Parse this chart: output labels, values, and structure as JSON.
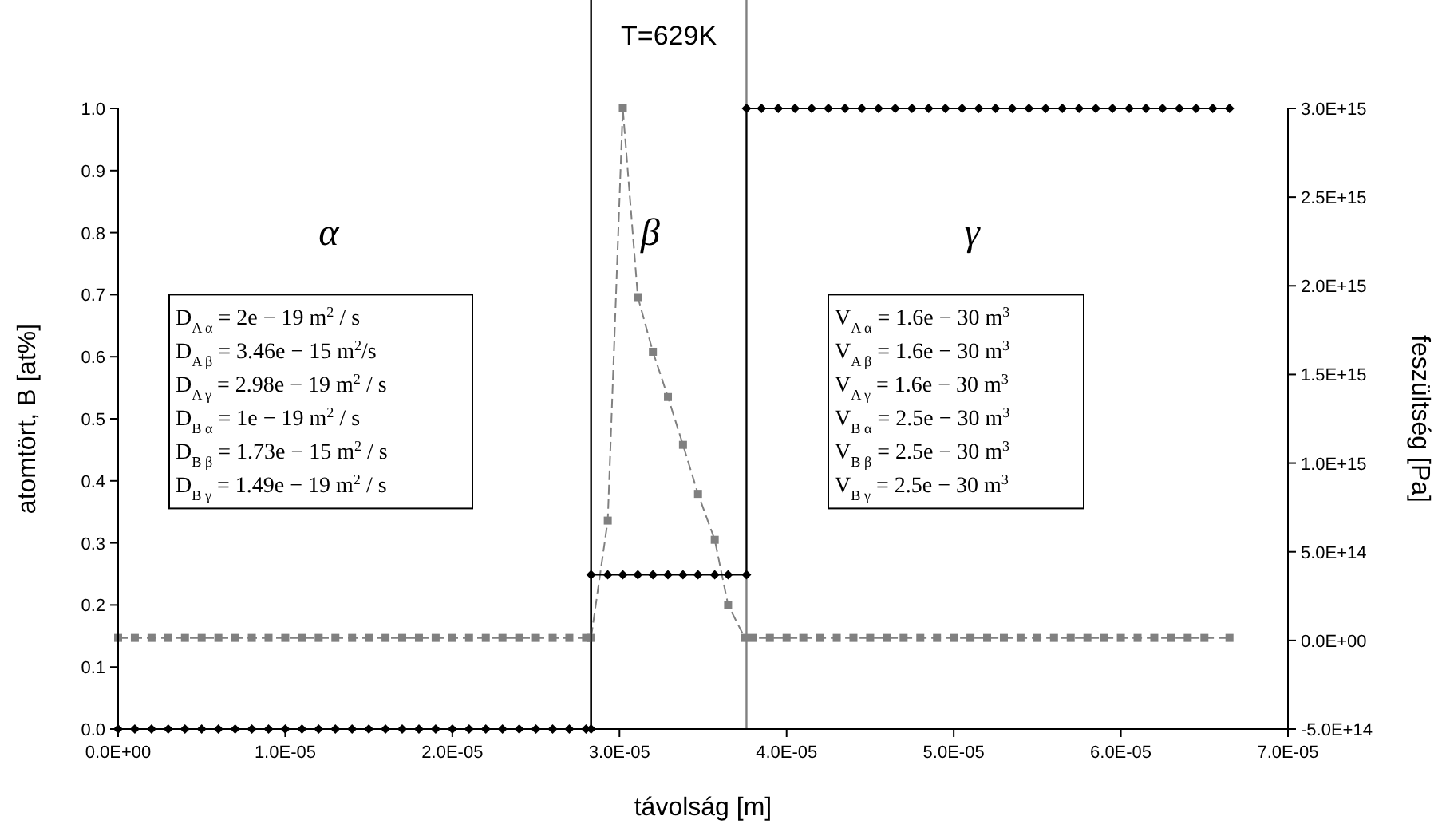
{
  "chart_data": {
    "type": "line",
    "title": "T=629K",
    "xlabel": "távolság [m]",
    "ylabel": "atomtört, B [at%]",
    "y2label": "feszültség [Pa]",
    "xlim": [
      0,
      7e-05
    ],
    "xticks": [
      {
        "value": 0,
        "label": "0.0E+00"
      },
      {
        "value": 1e-05,
        "label": "1.0E-05"
      },
      {
        "value": 2e-05,
        "label": "2.0E-05"
      },
      {
        "value": 3e-05,
        "label": "3.0E-05"
      },
      {
        "value": 4e-05,
        "label": "4.0E-05"
      },
      {
        "value": 5e-05,
        "label": "5.0E-05"
      },
      {
        "value": 6e-05,
        "label": "6.0E-05"
      },
      {
        "value": 7e-05,
        "label": "7.0E-05"
      }
    ],
    "ylim": [
      0,
      1
    ],
    "yticks": [
      {
        "value": 0,
        "label": "0.0"
      },
      0.1,
      0.2,
      0.3,
      0.4,
      0.5,
      0.6,
      0.7,
      0.8,
      0.9,
      {
        "value": 1,
        "label": "1.0"
      }
    ],
    "y2lim": [
      -500000000000000.0,
      3000000000000000.0
    ],
    "y2ticks": [
      {
        "value": -500000000000000.0,
        "label": "-5.0E+14"
      },
      {
        "value": 0,
        "label": "0.0E+00"
      },
      {
        "value": 500000000000000.0,
        "label": "5.0E+14"
      },
      {
        "value": 1000000000000000.0,
        "label": "1.0E+15"
      },
      {
        "value": 1500000000000000.0,
        "label": "1.5E+15"
      },
      {
        "value": 2000000000000000.0,
        "label": "2.0E+15"
      },
      {
        "value": 2500000000000000.0,
        "label": "2.5E+15"
      },
      {
        "value": 3000000000000000.0,
        "label": "3.0E+15"
      }
    ],
    "grid": false,
    "ref_lines": [
      {
        "axis": "x",
        "value": 2.83e-05,
        "color": "#000000"
      },
      {
        "axis": "x",
        "value": 3.76e-05,
        "color": "#808080"
      }
    ],
    "series": [
      {
        "color": "#808080",
        "marker": "square",
        "line_style": "dashed",
        "x": [
          0,
          1e-06,
          2e-06,
          3e-06,
          4e-06,
          5e-06,
          6e-06,
          7e-06,
          8e-06,
          9e-06,
          1e-05,
          1.1e-05,
          1.2e-05,
          1.3e-05,
          1.4e-05,
          1.5e-05,
          1.6e-05,
          1.7e-05,
          1.8e-05,
          1.9e-05,
          2e-05,
          2.1e-05,
          2.2e-05,
          2.3e-05,
          2.4e-05,
          2.5e-05,
          2.6e-05,
          2.7e-05,
          2.8e-05,
          2.83e-05,
          2.93e-05,
          3.02e-05,
          3.11e-05,
          3.2e-05,
          3.29e-05,
          3.38e-05,
          3.47e-05,
          3.57e-05,
          3.65e-05,
          3.75e-05,
          3.8e-05,
          3.9e-05,
          4e-05,
          4.1e-05,
          4.2e-05,
          4.3e-05,
          4.4e-05,
          4.5e-05,
          4.6e-05,
          4.7e-05,
          4.8e-05,
          4.9e-05,
          5e-05,
          5.1e-05,
          5.2e-05,
          5.3e-05,
          5.4e-05,
          5.5e-05,
          5.6e-05,
          5.7e-05,
          5.8e-05,
          5.9e-05,
          6e-05,
          6.1e-05,
          6.2e-05,
          6.3e-05,
          6.4e-05,
          6.5e-05,
          6.65e-05
        ],
        "values": [
          0.147,
          0.147,
          0.147,
          0.147,
          0.147,
          0.147,
          0.147,
          0.147,
          0.147,
          0.147,
          0.147,
          0.147,
          0.147,
          0.147,
          0.147,
          0.147,
          0.147,
          0.147,
          0.147,
          0.147,
          0.147,
          0.147,
          0.147,
          0.147,
          0.147,
          0.147,
          0.147,
          0.147,
          0.147,
          0.147,
          0.336,
          1.0,
          0.696,
          0.608,
          0.535,
          0.458,
          0.379,
          0.305,
          0.2,
          0.147,
          0.147,
          0.147,
          0.147,
          0.147,
          0.147,
          0.147,
          0.147,
          0.147,
          0.147,
          0.147,
          0.147,
          0.147,
          0.147,
          0.147,
          0.147,
          0.147,
          0.147,
          0.147,
          0.147,
          0.147,
          0.147,
          0.147,
          0.147,
          0.147,
          0.147,
          0.147,
          0.147,
          0.147,
          0.147
        ]
      },
      {
        "color": "#000000",
        "marker": "diamond",
        "line_style": "solid",
        "axis": "y2",
        "x": [
          0,
          1e-06,
          2e-06,
          3e-06,
          4e-06,
          5e-06,
          6e-06,
          7e-06,
          8e-06,
          9e-06,
          1e-05,
          1.1e-05,
          1.2e-05,
          1.3e-05,
          1.4e-05,
          1.5e-05,
          1.6e-05,
          1.7e-05,
          1.8e-05,
          1.9e-05,
          2e-05,
          2.1e-05,
          2.2e-05,
          2.3e-05,
          2.4e-05,
          2.5e-05,
          2.6e-05,
          2.7e-05,
          2.8e-05,
          2.83e-05,
          2.83e-05,
          2.93e-05,
          3.02e-05,
          3.11e-05,
          3.2e-05,
          3.29e-05,
          3.38e-05,
          3.47e-05,
          3.57e-05,
          3.65e-05,
          3.76e-05,
          3.76e-05,
          3.85e-05,
          3.95e-05,
          4.05e-05,
          4.15e-05,
          4.25e-05,
          4.35e-05,
          4.45e-05,
          4.55e-05,
          4.65e-05,
          4.75e-05,
          4.85e-05,
          4.95e-05,
          5.05e-05,
          5.15e-05,
          5.25e-05,
          5.35e-05,
          5.45e-05,
          5.55e-05,
          5.65e-05,
          5.75e-05,
          5.85e-05,
          5.95e-05,
          6.05e-05,
          6.15e-05,
          6.25e-05,
          6.35e-05,
          6.45e-05,
          6.55e-05,
          6.65e-05
        ],
        "values": [
          -500000000000000.0,
          -500000000000000.0,
          -500000000000000.0,
          -500000000000000.0,
          -500000000000000.0,
          -500000000000000.0,
          -500000000000000.0,
          -500000000000000.0,
          -500000000000000.0,
          -500000000000000.0,
          -500000000000000.0,
          -500000000000000.0,
          -500000000000000.0,
          -500000000000000.0,
          -500000000000000.0,
          -500000000000000.0,
          -500000000000000.0,
          -500000000000000.0,
          -500000000000000.0,
          -500000000000000.0,
          -500000000000000.0,
          -500000000000000.0,
          -500000000000000.0,
          -500000000000000.0,
          -500000000000000.0,
          -500000000000000.0,
          -500000000000000.0,
          -500000000000000.0,
          -500000000000000.0,
          -500000000000000.0,
          370000000000000.0,
          370000000000000.0,
          370000000000000.0,
          370000000000000.0,
          370000000000000.0,
          370000000000000.0,
          370000000000000.0,
          370000000000000.0,
          370000000000000.0,
          370000000000000.0,
          370000000000000.0,
          3000000000000000.0,
          3000000000000000.0,
          3000000000000000.0,
          3000000000000000.0,
          3000000000000000.0,
          3000000000000000.0,
          3000000000000000.0,
          3000000000000000.0,
          3000000000000000.0,
          3000000000000000.0,
          3000000000000000.0,
          3000000000000000.0,
          3000000000000000.0,
          3000000000000000.0,
          3000000000000000.0,
          3000000000000000.0,
          3000000000000000.0,
          3000000000000000.0,
          3000000000000000.0,
          3000000000000000.0,
          3000000000000000.0,
          3000000000000000.0,
          3000000000000000.0,
          3000000000000000.0,
          3000000000000000.0,
          3000000000000000.0,
          3000000000000000.0,
          3000000000000000.0,
          3000000000000000.0,
          3000000000000000.0
        ]
      }
    ],
    "annotations": [
      "α",
      "β",
      "γ",
      "D$_{A α}$ = 2e − 19 m$^{2}$ / s\nD$_{A β}$ = 3.46e − 15 m$^{2}$/s\nD$_{A γ}$ = 2.98e − 19 m$^{2}$ / s\nD$_{B α}$ = 1e − 19 m$^{2}$ / s\nD$_{B β}$ = 1.73e − 15 m$^{2}$ / s\nD$_{B γ}$ = 1.49e − 19 m$^{2}$ / s",
      "V$_{A α}$ = 1.6e − 30 m$^{3}$\nV$_{A β}$ = 1.6e − 30 m$^{3}$\nV$_{A γ}$ = 1.6e − 30 m$^{3}$\nV$_{B α}$ = 2.5e − 30 m$^{3}$\nV$_{B β}$ = 2.5e − 30 m$^{3}$\nV$_{B γ}$ = 2.5e − 30 m$^{3}$"
    ]
  }
}
